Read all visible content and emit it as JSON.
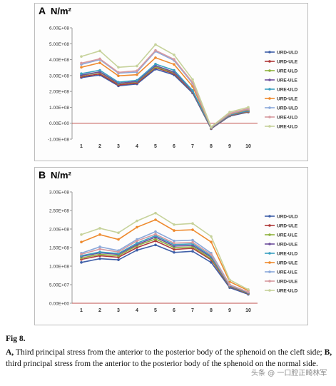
{
  "chart_data": [
    {
      "type": "line",
      "panel": "A",
      "unit": "N/m²",
      "categories": [
        "1",
        "2",
        "3",
        "4",
        "5",
        "6",
        "7",
        "8",
        "9",
        "10"
      ],
      "yticks": [
        "-1.00E+08",
        "0.00E+00",
        "1.00E+08",
        "2.00E+08",
        "3.00E+08",
        "4.00E+08",
        "5.00E+08",
        "6.00E+08"
      ],
      "ylim": [
        -100000000,
        600000000
      ],
      "legend_position": "right",
      "series": [
        {
          "name": "URD-ULD",
          "color": "#3f5fa8",
          "values": [
            287000000,
            303000000,
            235000000,
            247000000,
            340000000,
            304000000,
            190000000,
            -35000000,
            45000000,
            70000000
          ]
        },
        {
          "name": "URD-ULE",
          "color": "#b03a3a",
          "values": [
            293000000,
            310000000,
            241000000,
            253000000,
            350000000,
            312000000,
            196000000,
            -33000000,
            48000000,
            73000000
          ]
        },
        {
          "name": "URE-ULD",
          "color": "#8fb23f",
          "values": [
            300000000,
            320000000,
            248000000,
            260000000,
            355000000,
            318000000,
            199000000,
            -31000000,
            50000000,
            76000000
          ]
        },
        {
          "name": "URE-ULE",
          "color": "#6e4f9c",
          "values": [
            303000000,
            323000000,
            251000000,
            263000000,
            362000000,
            322000000,
            201000000,
            -30000000,
            51000000,
            78000000
          ]
        },
        {
          "name": "URE-ULD",
          "color": "#3aa0c1",
          "values": [
            312000000,
            333000000,
            258000000,
            270000000,
            372000000,
            333000000,
            206000000,
            -29000000,
            53000000,
            80000000
          ]
        },
        {
          "name": "URD-ULE",
          "color": "#ee8a2e",
          "values": [
            352000000,
            380000000,
            298000000,
            305000000,
            412000000,
            370000000,
            232000000,
            -27000000,
            57000000,
            86000000
          ]
        },
        {
          "name": "URD-ULD",
          "color": "#8aa8da",
          "values": [
            370000000,
            400000000,
            315000000,
            322000000,
            452000000,
            395000000,
            250000000,
            -26000000,
            60000000,
            90000000
          ]
        },
        {
          "name": "URE-ULD",
          "color": "#d79aa0",
          "values": [
            378000000,
            405000000,
            320000000,
            330000000,
            458000000,
            402000000,
            256000000,
            -25000000,
            62000000,
            92000000
          ]
        },
        {
          "name": "URE-ULD",
          "color": "#c6d29a",
          "values": [
            420000000,
            455000000,
            352000000,
            360000000,
            495000000,
            430000000,
            275000000,
            -23000000,
            70000000,
            100000000
          ]
        }
      ]
    },
    {
      "type": "line",
      "panel": "B",
      "unit": "N/m²",
      "categories": [
        "1",
        "2",
        "3",
        "4",
        "5",
        "6",
        "7",
        "8",
        "9",
        "10"
      ],
      "yticks": [
        "0.00E+00",
        "5.00E+07",
        "1.00E+08",
        "1.50E+08",
        "2.00E+08",
        "2.50E+08",
        "3.00E+08"
      ],
      "ylim": [
        0,
        300000000
      ],
      "legend_position": "right",
      "series": [
        {
          "name": "URD-ULD",
          "color": "#3f5fa8",
          "values": [
            110000000,
            120000000,
            117000000,
            143000000,
            157000000,
            137000000,
            140000000,
            110000000,
            42000000,
            24000000
          ]
        },
        {
          "name": "URD-ULE",
          "color": "#b03a3a",
          "values": [
            118000000,
            128000000,
            124000000,
            150000000,
            168000000,
            145000000,
            148000000,
            117000000,
            45000000,
            26000000
          ]
        },
        {
          "name": "URE-ULE",
          "color": "#8fb23f",
          "values": [
            122000000,
            132000000,
            128000000,
            155000000,
            173000000,
            150000000,
            152000000,
            120000000,
            46000000,
            27000000
          ]
        },
        {
          "name": "URD-ULE",
          "color": "#6e4f9c",
          "values": [
            126000000,
            136000000,
            132000000,
            158000000,
            178000000,
            154000000,
            156000000,
            124000000,
            47000000,
            28000000
          ]
        },
        {
          "name": "URE-ULD",
          "color": "#3aa0c1",
          "values": [
            128000000,
            138000000,
            134000000,
            162000000,
            182000000,
            158000000,
            160000000,
            127000000,
            48000000,
            29000000
          ]
        },
        {
          "name": "URD-ULE",
          "color": "#ee8a2e",
          "values": [
            165000000,
            185000000,
            172000000,
            205000000,
            225000000,
            196000000,
            198000000,
            165000000,
            58000000,
            34000000
          ]
        },
        {
          "name": "URE-ULE",
          "color": "#8aa8da",
          "values": [
            135000000,
            152000000,
            142000000,
            172000000,
            193000000,
            168000000,
            170000000,
            135000000,
            50000000,
            30000000
          ]
        },
        {
          "name": "URD-ULE",
          "color": "#d79aa0",
          "values": [
            132000000,
            146000000,
            138000000,
            168000000,
            186000000,
            162000000,
            164000000,
            131000000,
            49000000,
            30000000
          ]
        },
        {
          "name": "URE-ULD",
          "color": "#c6d29a",
          "values": [
            185000000,
            202000000,
            190000000,
            222000000,
            243000000,
            212000000,
            215000000,
            180000000,
            63000000,
            37000000
          ]
        }
      ]
    }
  ],
  "caption": {
    "label": "Fig 8.",
    "a_letter": "A,",
    "a_text": " Third principal stress from the anterior to the posterior body of the sphenoid on the cleft side; ",
    "b_letter": "B,",
    "b_text": " third principal stress from the anterior to the posterior body of the sphenoid on the normal side."
  },
  "watermark": "头条 @ 一口腔正畸林军"
}
